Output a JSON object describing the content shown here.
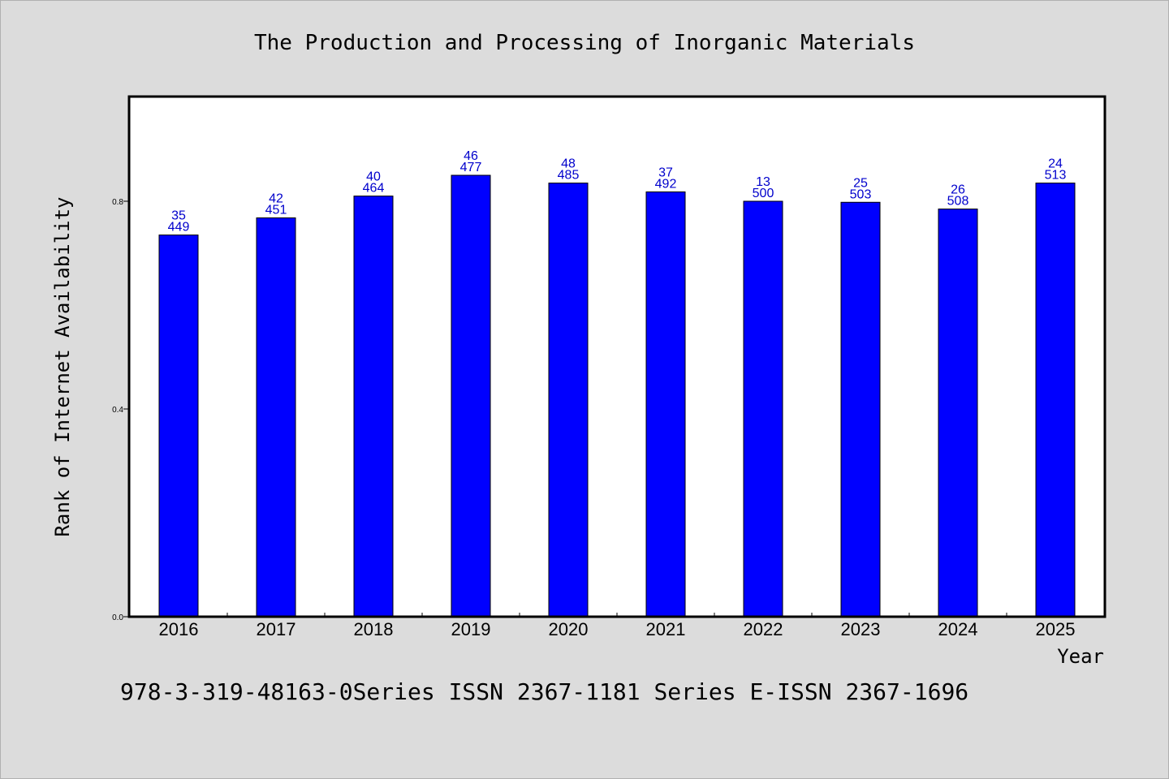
{
  "footer_text": "978-3-319-48163-0Series ISSN 2367-1181 Series E-ISSN 2367-1696",
  "colors": {
    "background": "#dcdcdc",
    "plot_background": "#ffffff",
    "bar_fill": "#0000ff",
    "label_color": "#0000cc",
    "axis_color": "#000000"
  },
  "chart_data": {
    "type": "bar",
    "title": "The Production and Processing of Inorganic Materials",
    "xlabel": "Year",
    "ylabel": "Rank of Internet Availability",
    "categories": [
      "2016",
      "2017",
      "2018",
      "2019",
      "2020",
      "2021",
      "2022",
      "2023",
      "2024",
      "2025"
    ],
    "values": [
      0.735,
      0.768,
      0.81,
      0.85,
      0.835,
      0.818,
      0.8,
      0.798,
      0.785,
      0.835
    ],
    "data_labels": [
      [
        "35",
        "449"
      ],
      [
        "42",
        "451"
      ],
      [
        "40",
        "464"
      ],
      [
        "46",
        "477"
      ],
      [
        "48",
        "485"
      ],
      [
        "37",
        "492"
      ],
      [
        "13",
        "500"
      ],
      [
        "25",
        "503"
      ],
      [
        "26",
        "508"
      ],
      [
        "24",
        "513"
      ]
    ],
    "yticks": [
      0.0,
      0.4,
      0.8
    ],
    "ytick_labels": [
      "0.0",
      "0.4",
      "0.8"
    ],
    "ylim": [
      0,
      1.0
    ],
    "grid": false,
    "legend": "none"
  }
}
